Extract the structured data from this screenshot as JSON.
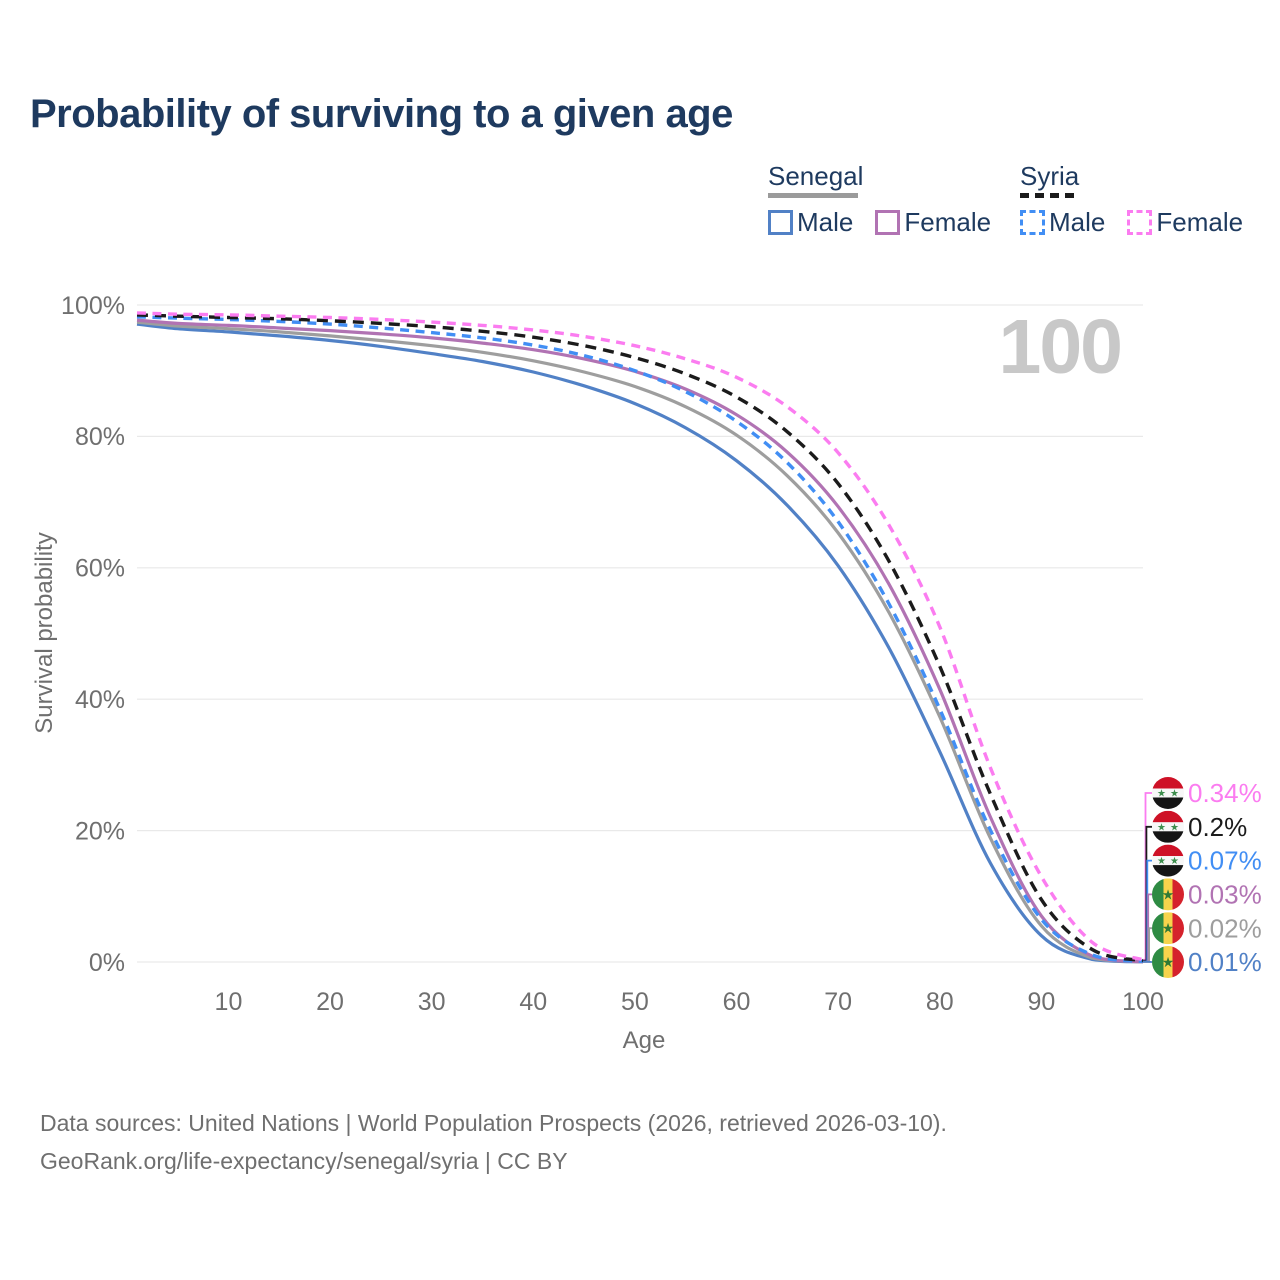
{
  "title": "Probability of surviving to a given age",
  "legend": {
    "groups": [
      {
        "country": "Senegal",
        "line_style": "solid",
        "underline_color": "#9b9b9b",
        "items": [
          {
            "label": "Male",
            "color": "#5181c6"
          },
          {
            "label": "Female",
            "color": "#b173b3"
          }
        ]
      },
      {
        "country": "Syria",
        "line_style": "dashed",
        "underline_color": "#1b1b1b",
        "items": [
          {
            "label": "Male",
            "color": "#418ef4"
          },
          {
            "label": "Female",
            "color": "#fb7cf0"
          }
        ]
      }
    ]
  },
  "chart_data": {
    "type": "line",
    "title": "Probability of surviving to a given age",
    "xlabel": "Age",
    "ylabel": "Survival probability",
    "xlim": [
      1,
      100
    ],
    "ylim": [
      0,
      100
    ],
    "grid": "horizontal",
    "legend_position": "top-right",
    "watermark": "100",
    "x_ticks": [
      10,
      20,
      30,
      40,
      50,
      60,
      70,
      80,
      90,
      100
    ],
    "y_ticks": [
      {
        "v": 0,
        "label": "0%"
      },
      {
        "v": 20,
        "label": "20%"
      },
      {
        "v": 40,
        "label": "40%"
      },
      {
        "v": 60,
        "label": "60%"
      },
      {
        "v": 80,
        "label": "80%"
      },
      {
        "v": 100,
        "label": "100%"
      }
    ],
    "ages": [
      1,
      5,
      10,
      15,
      20,
      25,
      30,
      35,
      40,
      45,
      50,
      55,
      60,
      65,
      70,
      75,
      80,
      85,
      90,
      95,
      100
    ],
    "series": [
      {
        "id": "senegal_male",
        "name": "Senegal Male",
        "country": "Senegal",
        "sex": "Male",
        "color": "#5181c6",
        "dash": false,
        "values": [
          97.1,
          96.4,
          95.9,
          95.3,
          94.6,
          93.7,
          92.6,
          91.4,
          89.8,
          87.7,
          85.0,
          81.3,
          76.3,
          69.5,
          60.3,
          47.8,
          32.0,
          15.0,
          4.0,
          0.4,
          0.01
        ]
      },
      {
        "id": "senegal_both",
        "name": "Senegal Both sexes",
        "country": "Senegal",
        "sex": "Both",
        "color": "#9e9e9e",
        "dash": false,
        "values": [
          97.4,
          96.8,
          96.4,
          95.9,
          95.3,
          94.6,
          93.8,
          92.8,
          91.5,
          89.8,
          87.6,
          84.5,
          80.2,
          74.0,
          65.3,
          53.2,
          37.3,
          18.8,
          5.5,
          0.6,
          0.02
        ]
      },
      {
        "id": "senegal_female",
        "name": "Senegal Female",
        "country": "Senegal",
        "sex": "Female",
        "color": "#b173b3",
        "dash": false,
        "values": [
          97.7,
          97.2,
          96.9,
          96.5,
          96.1,
          95.6,
          95.0,
          94.2,
          93.2,
          91.8,
          89.9,
          87.2,
          83.3,
          77.6,
          69.3,
          57.5,
          41.5,
          22.0,
          7.0,
          0.9,
          0.03
        ]
      },
      {
        "id": "syria_male",
        "name": "Syria Male",
        "country": "Syria",
        "sex": "Male",
        "color": "#418ef4",
        "dash": true,
        "values": [
          98.2,
          98.0,
          97.8,
          97.5,
          97.1,
          96.5,
          95.8,
          95.0,
          93.9,
          92.3,
          90.0,
          86.8,
          82.3,
          76.0,
          67.0,
          54.5,
          38.5,
          20.0,
          6.5,
          1.1,
          0.07
        ]
      },
      {
        "id": "syria_both",
        "name": "Syria Both sexes",
        "country": "Syria",
        "sex": "Both",
        "color": "#1b1b1b",
        "dash": true,
        "values": [
          98.5,
          98.3,
          98.1,
          97.9,
          97.6,
          97.2,
          96.7,
          96.0,
          95.1,
          93.8,
          92.0,
          89.5,
          86.0,
          80.7,
          72.8,
          61.0,
          45.0,
          25.5,
          9.5,
          1.9,
          0.2
        ]
      },
      {
        "id": "syria_female",
        "name": "Syria Female",
        "country": "Syria",
        "sex": "Female",
        "color": "#fb7cf0",
        "dash": true,
        "values": [
          98.8,
          98.6,
          98.5,
          98.3,
          98.1,
          97.8,
          97.4,
          96.9,
          96.2,
          95.2,
          93.8,
          91.8,
          89.0,
          84.5,
          77.5,
          66.5,
          51.0,
          29.5,
          13.0,
          3.0,
          0.34
        ]
      }
    ],
    "end_labels": [
      {
        "series": "syria_female",
        "text": "0.34%",
        "flag": "syria"
      },
      {
        "series": "syria_both",
        "text": "0.2%",
        "flag": "syria"
      },
      {
        "series": "syria_male",
        "text": "0.07%",
        "flag": "syria"
      },
      {
        "series": "senegal_female",
        "text": "0.03%",
        "flag": "senegal"
      },
      {
        "series": "senegal_both",
        "text": "0.02%",
        "flag": "senegal"
      },
      {
        "series": "senegal_male",
        "text": "0.01%",
        "flag": "senegal"
      }
    ],
    "flags": {
      "syria": {
        "red": "#ce1126",
        "white": "#f7f7f7",
        "black": "#151515",
        "star": "#3e8e4e"
      },
      "senegal": {
        "green": "#2e8b43",
        "yellow": "#f7d44c",
        "red": "#d5222c",
        "star": "#2f7a35"
      }
    },
    "star_glyph": "★"
  },
  "footer": {
    "line1": "Data sources: United Nations | World Population Prospects (2026, retrieved 2026-03-10).",
    "line2": "GeoRank.org/life-expectancy/senegal/syria | CC BY"
  }
}
